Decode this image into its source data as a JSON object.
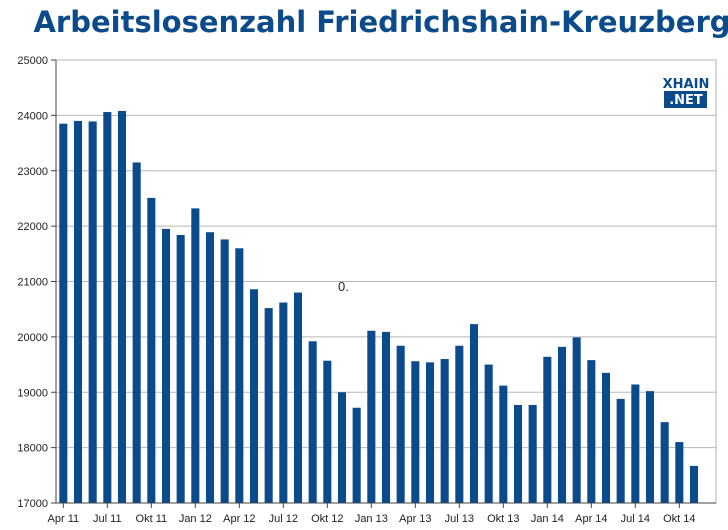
{
  "chart_data": {
    "type": "bar",
    "title": "Arbeitslosenzahl Friedrichshain-Kreuzberg",
    "xlabel": "",
    "ylabel": "",
    "ylim": [
      17000,
      25000
    ],
    "yticks": [
      17000,
      18000,
      19000,
      20000,
      21000,
      22000,
      23000,
      24000,
      25000
    ],
    "grid": true,
    "bar_color": "#0b4a8b",
    "x_tick_labels": [
      {
        "index": 0,
        "label": "Apr 11"
      },
      {
        "index": 3,
        "label": "Jul 11"
      },
      {
        "index": 6,
        "label": "Okt 11"
      },
      {
        "index": 9,
        "label": "Jan 12"
      },
      {
        "index": 12,
        "label": "Apr 12"
      },
      {
        "index": 15,
        "label": "Jul 12"
      },
      {
        "index": 18,
        "label": "Okt 12"
      },
      {
        "index": 21,
        "label": "Jan 13"
      },
      {
        "index": 24,
        "label": "Apr 13"
      },
      {
        "index": 27,
        "label": "Jul 13"
      },
      {
        "index": 30,
        "label": "Okt 13"
      },
      {
        "index": 33,
        "label": "Jan 14"
      },
      {
        "index": 36,
        "label": "Apr 14"
      },
      {
        "index": 39,
        "label": "Jul 14"
      },
      {
        "index": 42,
        "label": "Okt 14"
      }
    ],
    "categories": [
      "2011-04",
      "2011-05",
      "2011-06",
      "2011-07",
      "2011-08",
      "2011-09",
      "2011-10",
      "2011-11",
      "2011-12",
      "2012-01",
      "2012-02",
      "2012-03",
      "2012-04",
      "2012-05",
      "2012-06",
      "2012-07",
      "2012-08",
      "2012-09",
      "2012-10",
      "2012-11",
      "2012-12",
      "2013-01",
      "2013-02",
      "2013-03",
      "2013-04",
      "2013-05",
      "2013-06",
      "2013-07",
      "2013-08",
      "2013-09",
      "2013-10",
      "2013-11",
      "2013-12",
      "2014-01",
      "2014-02",
      "2014-03",
      "2014-04",
      "2014-05",
      "2014-06",
      "2014-07",
      "2014-08",
      "2014-09",
      "2014-10",
      "2014-11",
      "2014-12"
    ],
    "values": [
      23850,
      23900,
      23890,
      24060,
      24080,
      23150,
      22510,
      21950,
      21840,
      22320,
      21890,
      21760,
      21600,
      20860,
      20520,
      20620,
      20800,
      19920,
      19570,
      19000,
      18720,
      20110,
      20090,
      19840,
      19560,
      19540,
      19600,
      19840,
      20230,
      19500,
      19120,
      18770,
      18770,
      19640,
      19820,
      19990,
      19580,
      19350,
      18880,
      19140,
      19020,
      18460,
      18100,
      17670,
      17000
    ],
    "annotation": "0."
  },
  "logo": {
    "line1": "XHAIN",
    "line2": ".NET",
    "color": "#0b4a8b"
  }
}
